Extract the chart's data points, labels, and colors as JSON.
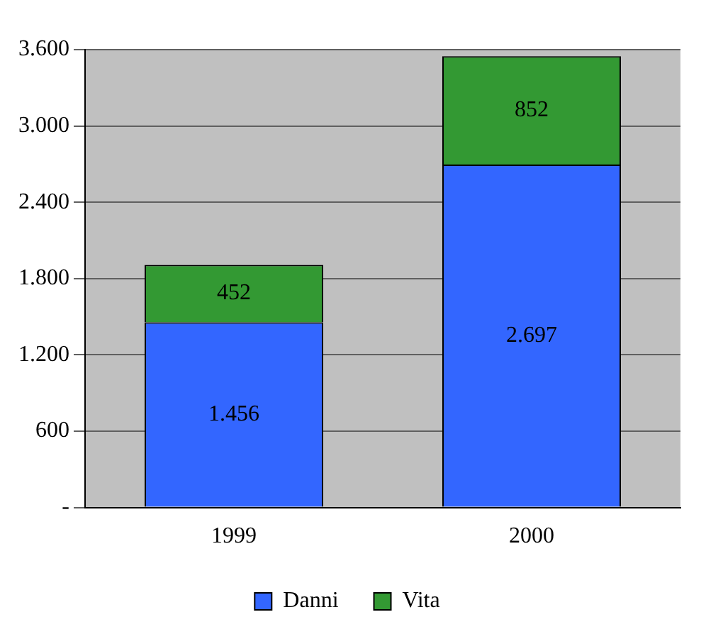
{
  "chart_data": {
    "type": "bar",
    "stacked": true,
    "categories": [
      "1999",
      "2000"
    ],
    "series": [
      {
        "name": "Danni",
        "color": "#3366ff",
        "values": [
          1456,
          2697
        ],
        "value_labels": [
          "1.456",
          "2.697"
        ]
      },
      {
        "name": "Vita",
        "color": "#339933",
        "values": [
          452,
          852
        ],
        "value_labels": [
          "452",
          "852"
        ]
      }
    ],
    "ylim": [
      0,
      3600
    ],
    "yticks": [
      {
        "value": 0,
        "label": "-"
      },
      600,
      {
        "value": 1200,
        "label": "1.200"
      },
      {
        "value": 1800,
        "label": "1.800"
      },
      {
        "value": 2400,
        "label": "2.400"
      },
      {
        "value": 3000,
        "label": "3.000"
      },
      {
        "value": 3600,
        "label": "3.600"
      }
    ],
    "grid": "y",
    "legend": "bottom"
  }
}
